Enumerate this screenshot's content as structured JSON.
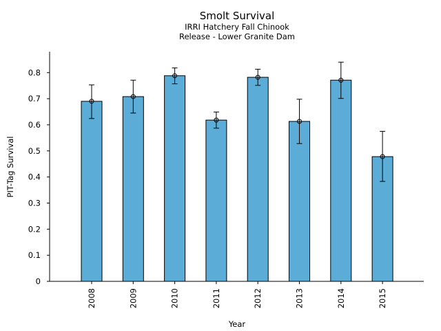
{
  "chart_data": {
    "type": "bar",
    "title": "Smolt Survival",
    "subtitle_lines": [
      "IRRI Hatchery Fall Chinook",
      "Release - Lower Granite Dam"
    ],
    "xlabel": "Year",
    "ylabel": "PIT-Tag Survival",
    "categories": [
      "2008",
      "2009",
      "2010",
      "2011",
      "2012",
      "2013",
      "2014",
      "2015"
    ],
    "values": [
      0.69,
      0.708,
      0.788,
      0.618,
      0.782,
      0.613,
      0.771,
      0.478
    ],
    "error_low": [
      0.624,
      0.645,
      0.757,
      0.587,
      0.751,
      0.528,
      0.701,
      0.383
    ],
    "error_high": [
      0.753,
      0.771,
      0.818,
      0.649,
      0.813,
      0.698,
      0.84,
      0.575
    ],
    "ylim": [
      0,
      0.88
    ],
    "yticks": [
      0,
      0.1,
      0.2,
      0.3,
      0.4,
      0.5,
      0.6,
      0.7,
      0.8
    ],
    "ytick_labels": [
      "0",
      "0.1",
      "0.2",
      "0.3",
      "0.4",
      "0.5",
      "0.6",
      "0.7",
      "0.8"
    ],
    "bar_color": "#5bacd6",
    "grid": false,
    "legend": "none"
  }
}
